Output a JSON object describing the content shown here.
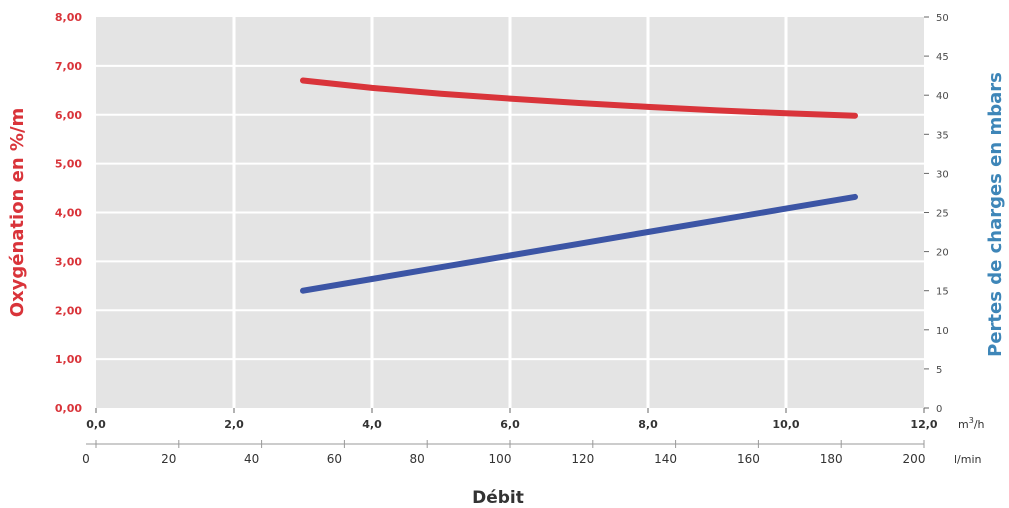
{
  "chart_data": {
    "type": "line",
    "title": "",
    "xlabel": "Débit",
    "x_primary": {
      "unit": "m³/h",
      "unit_base": "m",
      "unit_sup": "3",
      "unit_rest": "/h",
      "range": [
        0,
        12
      ],
      "ticks": [
        "0,0",
        "2,0",
        "4,0",
        "6,0",
        "8,0",
        "10,0",
        "12,0"
      ],
      "tick_values": [
        0,
        2,
        4,
        6,
        8,
        10,
        12
      ]
    },
    "x_secondary": {
      "unit": "l/min",
      "range": [
        0,
        200
      ],
      "ticks": [
        "0",
        "20",
        "40",
        "60",
        "80",
        "100",
        "120",
        "140",
        "160",
        "180",
        "200"
      ],
      "tick_values": [
        0,
        20,
        40,
        60,
        80,
        100,
        120,
        140,
        160,
        180,
        200
      ]
    },
    "y_left": {
      "label": "Oxygénation en %/m",
      "range": [
        0,
        8
      ],
      "ticks": [
        "0,00",
        "1,00",
        "2,00",
        "3,00",
        "4,00",
        "5,00",
        "6,00",
        "7,00",
        "8,00"
      ],
      "tick_values": [
        0,
        1,
        2,
        3,
        4,
        5,
        6,
        7,
        8
      ]
    },
    "y_right": {
      "label": "Pertes de charges en mbars",
      "range": [
        0,
        50
      ],
      "ticks": [
        "0",
        "5",
        "10",
        "15",
        "20",
        "25",
        "30",
        "35",
        "40",
        "45",
        "50"
      ],
      "tick_values": [
        0,
        5,
        10,
        15,
        20,
        25,
        30,
        35,
        40,
        45,
        50
      ]
    },
    "grid": true,
    "series": [
      {
        "axis": "left",
        "color": "#d9343a",
        "points": [
          [
            3.0,
            6.7
          ],
          [
            4.0,
            6.55
          ],
          [
            5.0,
            6.43
          ],
          [
            6.0,
            6.33
          ],
          [
            7.0,
            6.24
          ],
          [
            8.0,
            6.16
          ],
          [
            9.0,
            6.09
          ],
          [
            10.0,
            6.03
          ],
          [
            11.0,
            5.98
          ]
        ]
      },
      {
        "axis": "right",
        "color": "#3c55a5",
        "points": [
          [
            3.0,
            15.0
          ],
          [
            4.0,
            16.5
          ],
          [
            5.0,
            18.0
          ],
          [
            6.0,
            19.5
          ],
          [
            7.0,
            21.0
          ],
          [
            8.0,
            22.5
          ],
          [
            9.0,
            24.0
          ],
          [
            10.0,
            25.5
          ],
          [
            11.0,
            27.0
          ]
        ]
      }
    ]
  },
  "colors": {
    "plot_background": "#e4e4e4",
    "grid": "#ffffff",
    "left_axis": "#d9343a",
    "right_axis_title": "#3e86b8"
  }
}
